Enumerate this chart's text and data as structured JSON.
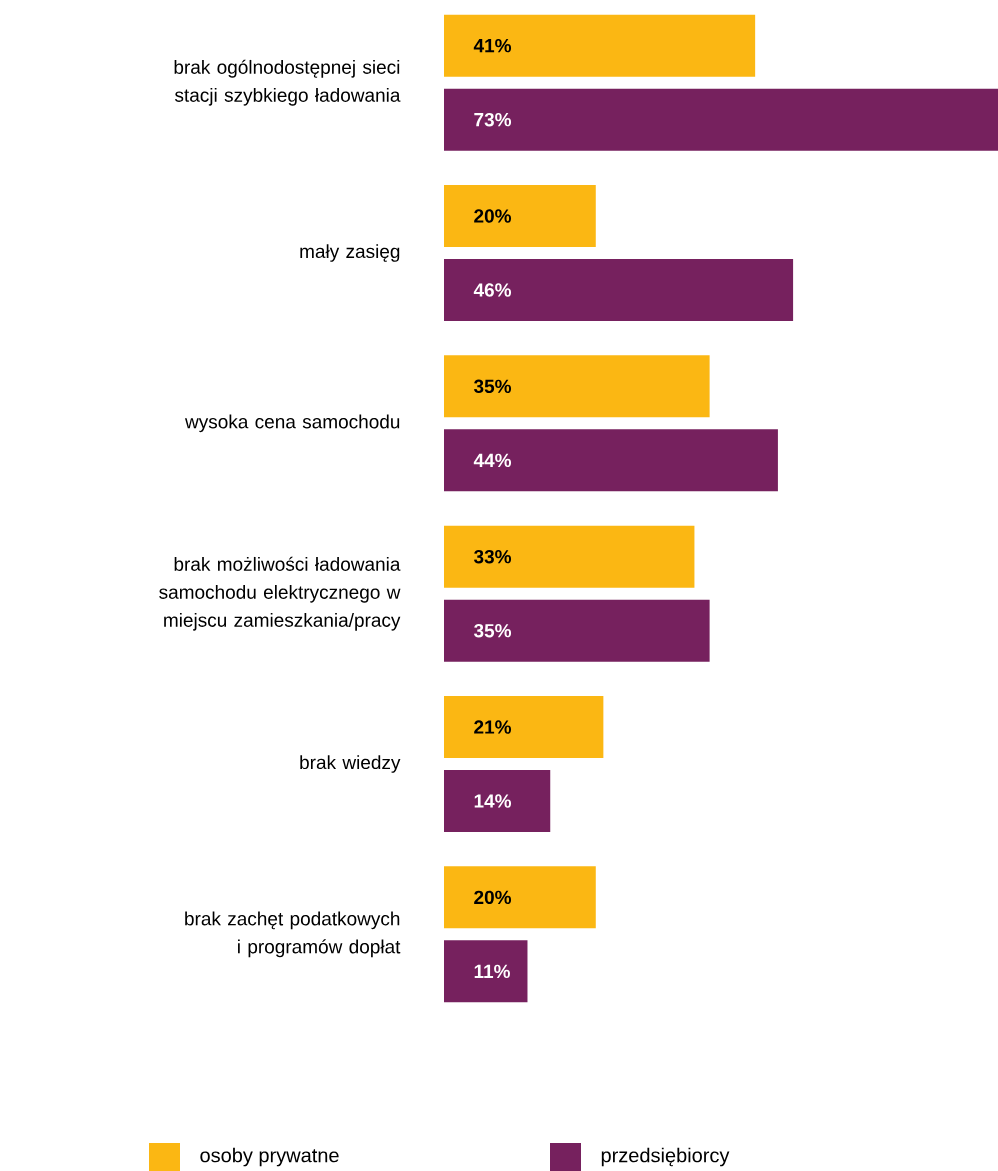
{
  "chart_data": {
    "type": "bar",
    "orientation": "horizontal",
    "categories": [
      "brak ogólnodostępnej sieci stacji szybkiego ładowania",
      "mały zasięg",
      "wysoka cena samochodu",
      "brak możliwości ładowania samochodu elektrycznego w miejscu zamieszkania/pracy",
      "brak wiedzy",
      "brak zachęt podatkowych i programów dopłat"
    ],
    "series": [
      {
        "name": "osoby prywatne",
        "color": "#fbb713",
        "values": [
          41,
          20,
          35,
          33,
          21,
          20
        ],
        "value_labels": [
          "41%",
          "20%",
          "35%",
          "33%",
          "21%",
          "20%"
        ]
      },
      {
        "name": "przedsiębiorcy",
        "color": "#76215e",
        "values": [
          73,
          46,
          44,
          35,
          14,
          11
        ],
        "value_labels": [
          "73%",
          "46%",
          "44%",
          "35%",
          "14%",
          "11%"
        ]
      }
    ],
    "tick_labels": "y",
    "legend": "bottom",
    "grid": false
  }
}
